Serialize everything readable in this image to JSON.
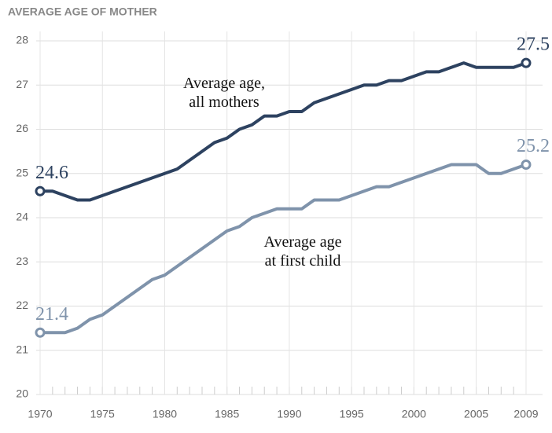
{
  "chart_data": {
    "type": "line",
    "title": "AVERAGE AGE OF MOTHER",
    "x": [
      1970,
      1971,
      1972,
      1973,
      1974,
      1975,
      1976,
      1977,
      1978,
      1979,
      1980,
      1981,
      1982,
      1983,
      1984,
      1985,
      1986,
      1987,
      1988,
      1989,
      1990,
      1991,
      1992,
      1993,
      1994,
      1995,
      1996,
      1997,
      1998,
      1999,
      2000,
      2001,
      2002,
      2003,
      2004,
      2005,
      2006,
      2007,
      2008,
      2009
    ],
    "series": [
      {
        "name": "Average age,\nall mothers",
        "color": "#2d4260",
        "values": [
          24.6,
          24.6,
          24.5,
          24.4,
          24.4,
          24.5,
          24.6,
          24.7,
          24.8,
          24.9,
          25.0,
          25.1,
          25.3,
          25.5,
          25.7,
          25.8,
          26.0,
          26.1,
          26.3,
          26.3,
          26.4,
          26.4,
          26.6,
          26.7,
          26.8,
          26.9,
          27.0,
          27.0,
          27.1,
          27.1,
          27.2,
          27.3,
          27.3,
          27.4,
          27.5,
          27.4,
          27.4,
          27.4,
          27.4,
          27.5
        ]
      },
      {
        "name": "Average age\nat first child",
        "color": "#7f93ab",
        "values": [
          21.4,
          21.4,
          21.4,
          21.5,
          21.7,
          21.8,
          22.0,
          22.2,
          22.4,
          22.6,
          22.7,
          22.9,
          23.1,
          23.3,
          23.5,
          23.7,
          23.8,
          24.0,
          24.1,
          24.2,
          24.2,
          24.2,
          24.4,
          24.4,
          24.4,
          24.5,
          24.6,
          24.7,
          24.7,
          24.8,
          24.9,
          25.0,
          25.1,
          25.2,
          25.2,
          25.2,
          25.0,
          25.0,
          25.1,
          25.2
        ]
      }
    ],
    "xlim": [
      1970,
      2009
    ],
    "xticks": [
      1970,
      1975,
      1980,
      1985,
      1990,
      1995,
      2000,
      2005,
      2009
    ],
    "ylim": [
      20,
      28
    ],
    "yticks": [
      20,
      21,
      22,
      23,
      24,
      25,
      26,
      27,
      28
    ],
    "grid": true
  }
}
